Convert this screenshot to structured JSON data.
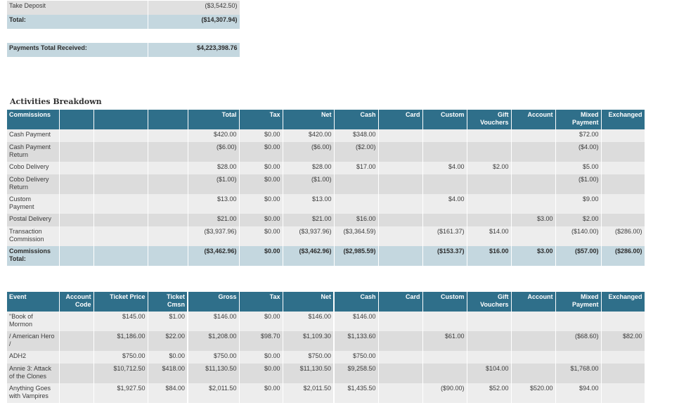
{
  "deposit": {
    "rows": [
      {
        "label": "Take Deposit",
        "value": "($3,542.50)"
      }
    ],
    "total_label": "Total:",
    "total_value": "($14,307.94)"
  },
  "payments": {
    "label": "Payments Total Received:",
    "value": "$4,223,398.76"
  },
  "section_title": "Activities Breakdown",
  "commissions": {
    "headers": [
      "Commissions",
      "",
      "",
      "",
      "Total",
      "Tax",
      "Net",
      "Cash",
      "Card",
      "Custom",
      "Gift Vouchers",
      "Account",
      "Mixed Payment",
      "Exchanged"
    ],
    "rows": [
      [
        "Cash Payment",
        "",
        "",
        "",
        "$420.00",
        "$0.00",
        "$420.00",
        "$348.00",
        "",
        "",
        "",
        "",
        "$72.00",
        ""
      ],
      [
        "Cash Payment Return",
        "",
        "",
        "",
        "($6.00)",
        "$0.00",
        "($6.00)",
        "($2.00)",
        "",
        "",
        "",
        "",
        "($4.00)",
        ""
      ],
      [
        "Cobo Delivery",
        "",
        "",
        "",
        "$28.00",
        "$0.00",
        "$28.00",
        "$17.00",
        "",
        "$4.00",
        "$2.00",
        "",
        "$5.00",
        ""
      ],
      [
        "Cobo Delivery Return",
        "",
        "",
        "",
        "($1.00)",
        "$0.00",
        "($1.00)",
        "",
        "",
        "",
        "",
        "",
        "($1.00)",
        ""
      ],
      [
        "Custom Payment",
        "",
        "",
        "",
        "$13.00",
        "$0.00",
        "$13.00",
        "",
        "",
        "$4.00",
        "",
        "",
        "$9.00",
        ""
      ],
      [
        "Postal Delivery",
        "",
        "",
        "",
        "$21.00",
        "$0.00",
        "$21.00",
        "$16.00",
        "",
        "",
        "",
        "$3.00",
        "$2.00",
        ""
      ],
      [
        "Transaction Commission",
        "",
        "",
        "",
        "($3,937.96)",
        "$0.00",
        "($3,937.96)",
        "($3,364.59)",
        "",
        "($161.37)",
        "$14.00",
        "",
        "($140.00)",
        "($286.00)"
      ]
    ],
    "total": [
      "Commissions Total:",
      "",
      "",
      "",
      "($3,462.96)",
      "$0.00",
      "($3,462.96)",
      "($2,985.59)",
      "",
      "($153.37)",
      "$16.00",
      "$3.00",
      "($57.00)",
      "($286.00)"
    ]
  },
  "events": {
    "headers": [
      "Event",
      "Account Code",
      "Ticket Price",
      "Ticket Cmsn",
      "Gross",
      "Tax",
      "Net",
      "Cash",
      "Card",
      "Custom",
      "Gift Vouchers",
      "Account",
      "Mixed Payment",
      "Exchanged"
    ],
    "rows": [
      [
        "\"Book of Mormon",
        "",
        "$145.00",
        "$1.00",
        "$146.00",
        "$0.00",
        "$146.00",
        "$146.00",
        "",
        "",
        "",
        "",
        "",
        ""
      ],
      [
        "/ American Hero /",
        "",
        "$1,186.00",
        "$22.00",
        "$1,208.00",
        "$98.70",
        "$1,109.30",
        "$1,133.60",
        "",
        "$61.00",
        "",
        "",
        "($68.60)",
        "$82.00"
      ],
      [
        "ADH2",
        "",
        "$750.00",
        "$0.00",
        "$750.00",
        "$0.00",
        "$750.00",
        "$750.00",
        "",
        "",
        "",
        "",
        "",
        ""
      ],
      [
        "Annie 3: Attack of the Clones",
        "",
        "$10,712.50",
        "$418.00",
        "$11,130.50",
        "$0.00",
        "$11,130.50",
        "$9,258.50",
        "",
        "",
        "$104.00",
        "",
        "$1,768.00",
        ""
      ],
      [
        "Anything Goes with Vampires",
        "",
        "$1,927.50",
        "$84.00",
        "$2,011.50",
        "$0.00",
        "$2,011.50",
        "$1,435.50",
        "",
        "($90.00)",
        "$52.00",
        "$520.00",
        "$94.00",
        ""
      ]
    ]
  }
}
